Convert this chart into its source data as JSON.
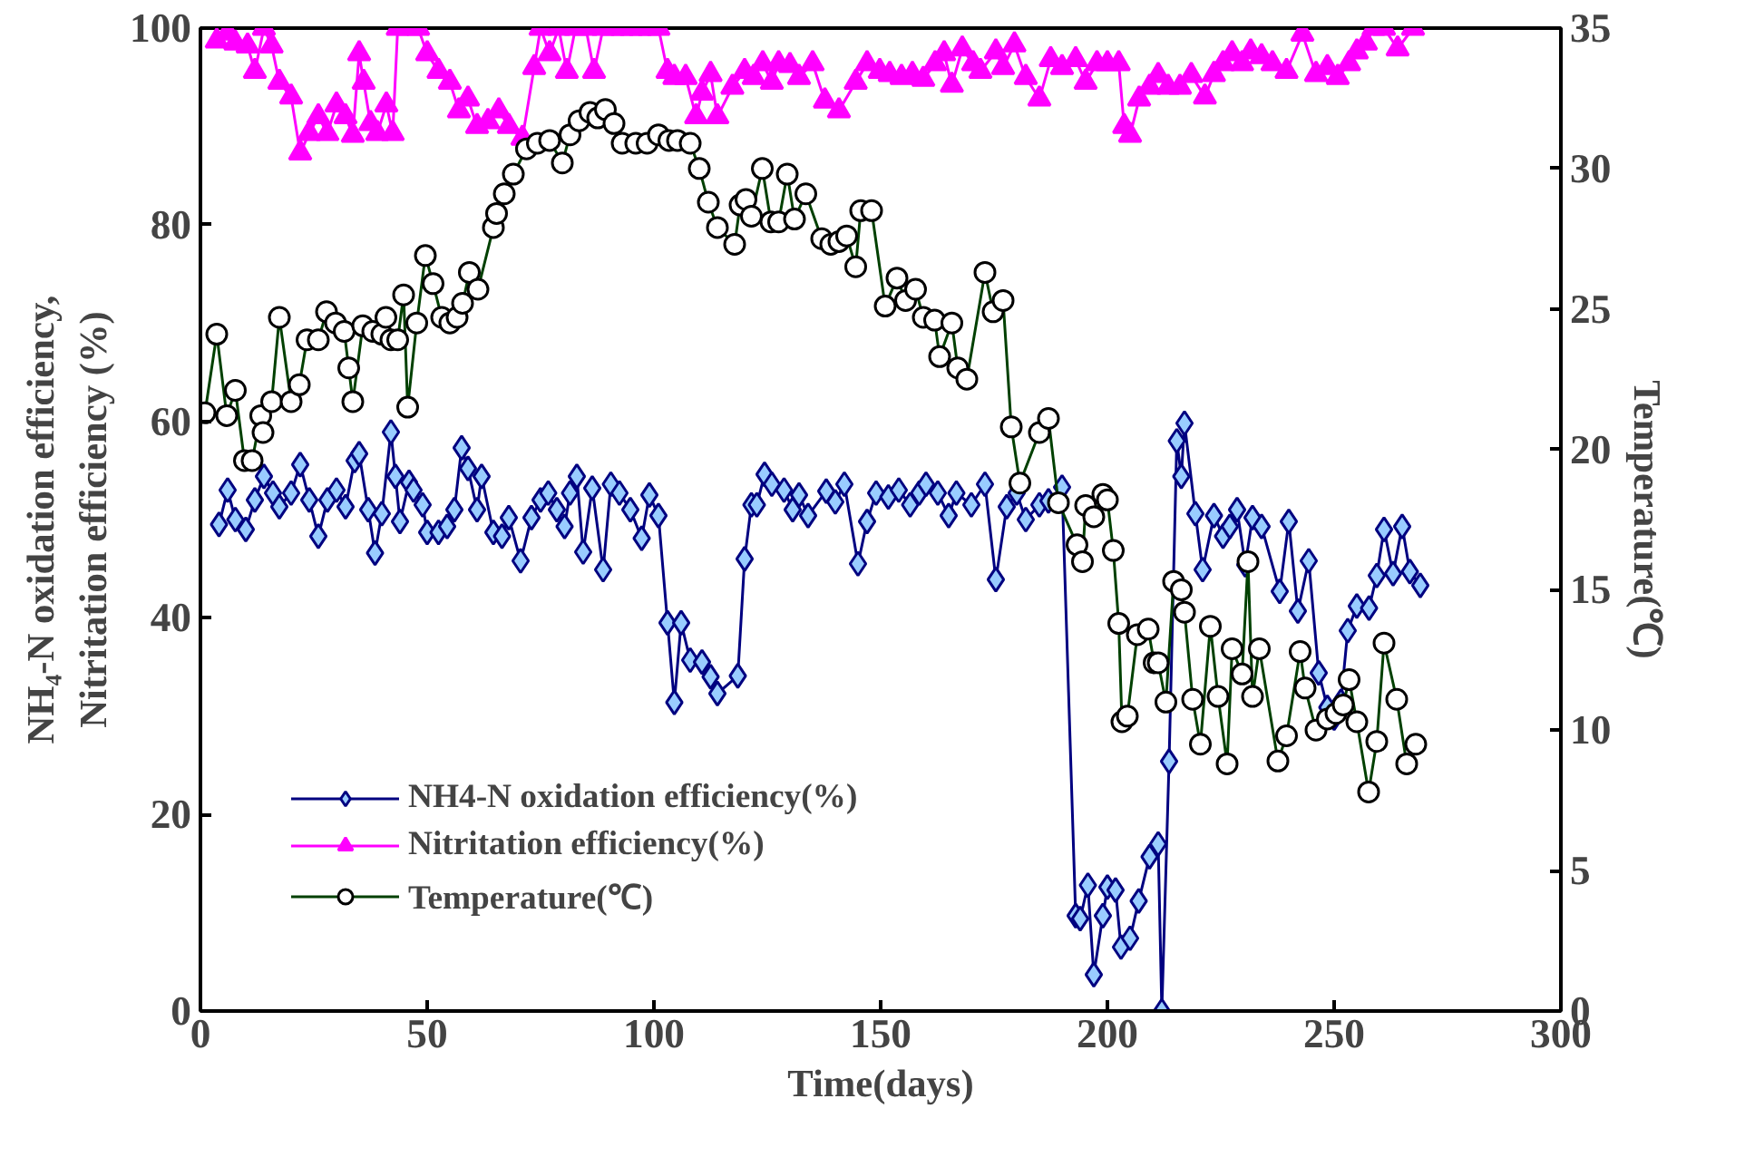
{
  "chart_data": {
    "type": "line",
    "xlabel": "Time(days)",
    "ylabel": "NH₄-N oxidation efficiency,\nNitritation efficiency (%)",
    "y2label": "Temperature(℃)",
    "xlim": [
      0,
      300
    ],
    "xticks": [
      0,
      50,
      100,
      150,
      200,
      250,
      300
    ],
    "ylim": [
      0,
      100
    ],
    "yticks": [
      0,
      20,
      40,
      60,
      80,
      100
    ],
    "y2lim": [
      0,
      35
    ],
    "y2ticks": [
      0,
      5,
      10,
      15,
      20,
      25,
      30,
      35
    ],
    "grid": false,
    "legend": "bottom left",
    "line_style": "solid",
    "series": [
      {
        "name": "NH4-N oxidation efficiency(%)",
        "color": "#000080",
        "marker": "diamond",
        "x": [
          4.1,
          6,
          7.7,
          10,
          12,
          14,
          16,
          17.4,
          20,
          22,
          24,
          26,
          28,
          30,
          32,
          34,
          35,
          37,
          38.5,
          40,
          42,
          43,
          44,
          46,
          47,
          49,
          50,
          52.5,
          54.4,
          56,
          57.6,
          59,
          61,
          62,
          64.6,
          66.5,
          68,
          70.6,
          73,
          75,
          76.7,
          78.6,
          80.3,
          81.5,
          83,
          84.4,
          86.4,
          88.8,
          90.5,
          92.4,
          94.8,
          97.3,
          99,
          101,
          103,
          104.5,
          106,
          108,
          110.6,
          112.5,
          114,
          118.5,
          120,
          121.5,
          122.7,
          124.4,
          126,
          128.7,
          130.6,
          132,
          134,
          138,
          140,
          142,
          145,
          147,
          149,
          151.7,
          154,
          156.5,
          158.5,
          160,
          162.6,
          165,
          166.7,
          170,
          173,
          175.4,
          177.8,
          180,
          182,
          185,
          187,
          190,
          193,
          194,
          195.7,
          197,
          199,
          200,
          201.8,
          203,
          205,
          206.9,
          209.3,
          211.2,
          212,
          213.6,
          215.3,
          216.3,
          217,
          219.4,
          221,
          223.5,
          225.5,
          227,
          228.6,
          230.4,
          232,
          234,
          238,
          240,
          242,
          244.4,
          246.6,
          248.5,
          250,
          251.5,
          253,
          255,
          257.7,
          259.4,
          261,
          263,
          265,
          266.7,
          269
        ],
        "values": [
          49.5,
          53,
          50,
          49,
          52,
          54.4,
          52.7,
          51.3,
          52.7,
          55.6,
          52,
          48.3,
          52,
          53,
          51.3,
          56,
          56.7,
          51,
          46.6,
          50.6,
          58.9,
          54.4,
          49.8,
          53.8,
          53,
          51.5,
          48.7,
          48.7,
          49.3,
          51,
          57.3,
          55.2,
          51,
          54.4,
          48.7,
          48.3,
          50.2,
          45.8,
          50.2,
          52,
          52.7,
          51,
          49.3,
          52.7,
          54.4,
          46.7,
          53.2,
          44.9,
          53.6,
          52.7,
          51,
          48.1,
          52.5,
          50.4,
          39.5,
          31.4,
          39.5,
          35.7,
          35.5,
          34,
          32.3,
          34.1,
          46,
          51.5,
          51.5,
          54.6,
          53.6,
          53,
          51,
          52.5,
          50.4,
          52.9,
          51.8,
          53.6,
          45.5,
          49.8,
          52.7,
          52.3,
          53,
          51.5,
          52.7,
          53.6,
          52.7,
          50.4,
          52.7,
          51.5,
          53.6,
          43.9,
          51.3,
          52.7,
          50,
          51.5,
          51.9,
          53.3,
          9.7,
          9.4,
          12.8,
          3.7,
          9.7,
          12.6,
          12.3,
          6.5,
          7.4,
          11.2,
          15.7,
          17,
          0,
          25.4,
          58,
          54.4,
          59.8,
          50.6,
          44.9,
          50.4,
          48.3,
          49.3,
          51,
          45.4,
          50.2,
          49.3,
          42.7,
          49.8,
          40.7,
          45.8,
          34.4,
          30.9,
          29.8,
          31.5,
          38.7,
          41.2,
          41,
          44.3,
          49,
          44.5,
          49.3,
          44.7,
          43.3
        ]
      },
      {
        "name": "Nitritation efficiency(%)",
        "color": "#ff00ff",
        "marker": "triangle",
        "x": [
          3.6,
          6,
          7.7,
          10.4,
          12,
          14,
          15.7,
          17.4,
          20,
          22,
          24,
          26,
          28,
          30,
          32,
          33.6,
          35,
          36,
          37.5,
          39,
          41,
          42.4,
          43.5,
          46,
          48,
          50,
          52.5,
          55,
          57,
          59,
          61,
          63.4,
          65.8,
          68,
          71,
          73.6,
          75,
          77,
          79,
          80.8,
          82.7,
          85,
          86.8,
          88.8,
          91,
          93,
          95,
          97,
          99,
          101,
          103,
          104.5,
          107,
          109.3,
          110.6,
          112.5,
          114,
          117.3,
          120,
          122,
          124,
          126,
          127.5,
          130,
          132,
          135,
          137.7,
          140.8,
          144.5,
          147,
          149.8,
          152,
          154.6,
          157,
          159.4,
          162,
          164,
          165.7,
          168,
          170.4,
          172,
          175.4,
          177,
          179.5,
          182,
          185,
          187.5,
          190,
          193,
          195.2,
          197.7,
          200,
          202.5,
          203.7,
          205,
          207,
          209.3,
          211.2,
          213.4,
          216,
          218.5,
          221.5,
          223.5,
          225.5,
          227.5,
          229.7,
          231.6,
          234,
          236.4,
          239.5,
          243,
          246,
          248.5,
          250.8,
          253.3,
          255,
          257,
          258.7,
          261,
          264,
          267.4
        ],
        "values": [
          98.7,
          99.5,
          98.5,
          98.2,
          95.6,
          100,
          98.2,
          94.5,
          93,
          87.3,
          89.3,
          91,
          89.3,
          92.2,
          91,
          89.1,
          97.4,
          94.5,
          90.3,
          89.3,
          92.2,
          89.3,
          100,
          100,
          100,
          97.4,
          95.6,
          94.5,
          91.6,
          92.8,
          90,
          90.5,
          91.6,
          90,
          88.8,
          96,
          100,
          97.4,
          100,
          95.6,
          100,
          100,
          95.6,
          100,
          100,
          100,
          100,
          100,
          100,
          100,
          95.6,
          95,
          95,
          91,
          93.4,
          95.3,
          91,
          94,
          95.6,
          95,
          96.4,
          94.5,
          96.4,
          96.2,
          95,
          96.4,
          92.6,
          91.6,
          94.5,
          96.4,
          95.6,
          95.3,
          95,
          95.3,
          94.8,
          96.4,
          97.4,
          94.2,
          97.9,
          96.4,
          95.6,
          97.6,
          96,
          98.3,
          95,
          92.8,
          96.8,
          96,
          96.8,
          94.5,
          96.4,
          96.4,
          96.4,
          90,
          89.1,
          92.8,
          94,
          95.2,
          94,
          94,
          95.2,
          93,
          95.3,
          96.4,
          97.4,
          96.4,
          97.6,
          97.1,
          96.4,
          95.6,
          99.4,
          95.3,
          96,
          95,
          96.4,
          97.6,
          98.5,
          100,
          100,
          97.9,
          100
        ]
      },
      {
        "name": "Temperature(℃)",
        "color": "#004000",
        "marker": "circle",
        "axis": "y2",
        "x": [
          1,
          3.6,
          5.8,
          7.7,
          9.7,
          11.4,
          13.3,
          13.8,
          15.7,
          17.4,
          20,
          21.8,
          23.5,
          26,
          27.8,
          29.8,
          31.7,
          32.7,
          33.6,
          35.8,
          38,
          40,
          40.9,
          42,
          43.5,
          44.8,
          45.7,
          47.7,
          49.6,
          51.3,
          53.2,
          55,
          56.6,
          57.8,
          59.3,
          61.2,
          64.6,
          65.3,
          67,
          69,
          71.9,
          74.3,
          77,
          79.8,
          81.5,
          83.5,
          85.9,
          87.6,
          89.3,
          91.2,
          93,
          96,
          98.5,
          101,
          103.3,
          105.2,
          108,
          110,
          112,
          114,
          117.8,
          119,
          120.3,
          121.5,
          123.9,
          125.8,
          127.5,
          129.4,
          131,
          133.5,
          137,
          139,
          140.8,
          142.5,
          144.5,
          145.6,
          148,
          151,
          153.6,
          155.5,
          157.7,
          159.4,
          161.9,
          163,
          165.7,
          167,
          169,
          173,
          174.8,
          177,
          178.8,
          180.7,
          185,
          187,
          189.2,
          193.3,
          194.5,
          195.2,
          197,
          199,
          200,
          201.3,
          202.5,
          203.2,
          204.4,
          206.6,
          209,
          210.3,
          211.2,
          212.9,
          214.6,
          216.3,
          217,
          218.8,
          220.5,
          222.7,
          224.4,
          226.4,
          227.5,
          229.7,
          231,
          232,
          233.5,
          237.6,
          239.5,
          242.5,
          243.6,
          246,
          248.5,
          250.4,
          252,
          253.3,
          255,
          257.6,
          259.4,
          261,
          263.8,
          266,
          268
        ],
        "values": [
          21.3,
          24.1,
          21.2,
          22.1,
          19.6,
          19.6,
          21.2,
          20.6,
          21.7,
          24.7,
          21.7,
          22.3,
          23.9,
          23.9,
          24.9,
          24.5,
          24.2,
          22.9,
          21.7,
          24.4,
          24.2,
          24.1,
          24.7,
          23.9,
          23.9,
          25.5,
          21.5,
          24.5,
          26.9,
          25.9,
          24.7,
          24.5,
          24.7,
          25.2,
          26.3,
          25.7,
          27.9,
          28.4,
          29.1,
          29.8,
          30.7,
          30.9,
          31,
          30.2,
          31.2,
          31.7,
          32,
          31.8,
          32.1,
          31.6,
          30.9,
          30.9,
          30.9,
          31.2,
          31,
          31,
          30.9,
          30,
          28.8,
          27.9,
          27.3,
          28.7,
          28.9,
          28.3,
          30,
          28.1,
          28.1,
          29.8,
          28.2,
          29.1,
          27.5,
          27.3,
          27.4,
          27.6,
          26.5,
          28.5,
          28.5,
          25.1,
          26.1,
          25.3,
          25.7,
          24.7,
          24.6,
          23.3,
          24.5,
          22.9,
          22.5,
          26.3,
          24.9,
          25.3,
          20.8,
          18.8,
          20.6,
          21.1,
          18.1,
          16.6,
          16,
          18,
          17.6,
          18.4,
          18.2,
          16.4,
          13.8,
          10.3,
          10.5,
          13.4,
          13.6,
          12.4,
          12.4,
          11,
          15.3,
          15,
          14.2,
          11.1,
          9.5,
          13.7,
          11.2,
          8.8,
          12.9,
          12,
          16,
          11.2,
          12.9,
          8.9,
          9.8,
          12.8,
          11.5,
          10,
          10.4,
          10.6,
          10.9,
          11.8,
          10.3,
          7.8,
          9.6,
          13.1,
          11.1,
          8.8,
          9.5
        ]
      }
    ]
  }
}
